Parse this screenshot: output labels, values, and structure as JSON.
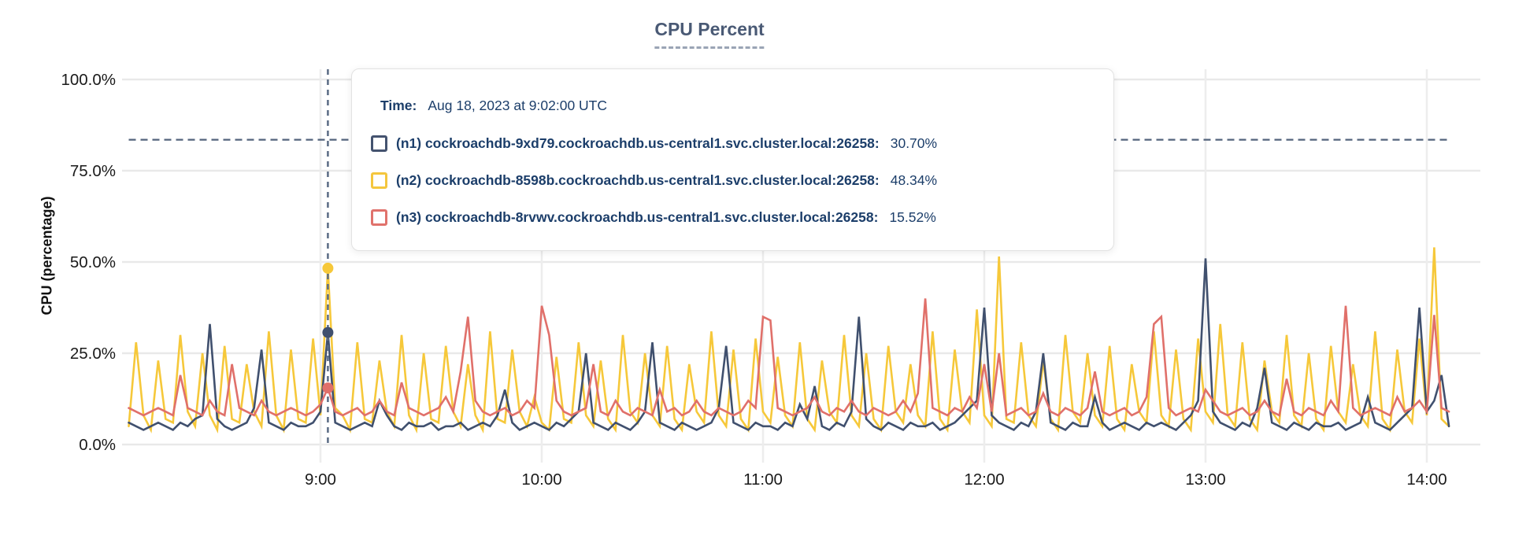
{
  "title": "CPU Percent",
  "y_axis_title": "CPU (percentage)",
  "tooltip": {
    "time_label": "Time:",
    "time_value": "Aug 18, 2023 at 9:02:00 UTC",
    "rows": [
      {
        "node": "(n1) cockroachdb-9xd79.cockroachdb.us-central1.svc.cluster.local:26258:",
        "value": "30.70%",
        "color": "#44536f"
      },
      {
        "node": "(n2) cockroachdb-8598b.cockroachdb.us-central1.svc.cluster.local:26258:",
        "value": "48.34%",
        "color": "#f4c63e"
      },
      {
        "node": "(n3) cockroachdb-8rvwv.cockroachdb.us-central1.svc.cluster.local:26258:",
        "value": "15.52%",
        "color": "#e0726c"
      }
    ]
  },
  "chart_data": {
    "type": "line",
    "title": "CPU Percent",
    "ylabel": "CPU (percentage)",
    "ylim": [
      0,
      100
    ],
    "grid": true,
    "y_tick_values": [
      0,
      25,
      50,
      75,
      100
    ],
    "y_tick_labels": [
      "0.0%",
      "25.0%",
      "50.0%",
      "75.0%",
      "100.0%"
    ],
    "x_tick_labels": [
      "9:00",
      "10:00",
      "11:00",
      "12:00",
      "13:00",
      "14:00"
    ],
    "x_tick_minutes": [
      540,
      600,
      660,
      720,
      780,
      840
    ],
    "x_start_minutes": 488,
    "x_step_minutes": 2,
    "x_range_labels": [
      "8:08",
      "14:06"
    ],
    "threshold_line": {
      "value": 83.5,
      "style": "dashed",
      "color": "#53637c"
    },
    "hover": {
      "index": 27,
      "time_minutes": 542,
      "time_label": "9:02",
      "values": {
        "n1": 30.7,
        "n2": 48.34,
        "n3": 15.52
      }
    },
    "series": [
      {
        "name": "n2",
        "color": "#f6c83a",
        "values": [
          5,
          28,
          8,
          4,
          23,
          7,
          6,
          30,
          9,
          5,
          25,
          8,
          4,
          27,
          7,
          6,
          22,
          9,
          5,
          31,
          8,
          4,
          26,
          7,
          6,
          29,
          8,
          48.3,
          10,
          8,
          4,
          28,
          7,
          6,
          23,
          9,
          5,
          30,
          8,
          4,
          25,
          7,
          6,
          27,
          9,
          5,
          22,
          8,
          4,
          31,
          7,
          6,
          26,
          9,
          5,
          13,
          6,
          4,
          24,
          7,
          6,
          28,
          8,
          5,
          23,
          7,
          4,
          30,
          9,
          6,
          25,
          8,
          5,
          27,
          7,
          4,
          22,
          9,
          6,
          31,
          8,
          5,
          26,
          7,
          4,
          29,
          9,
          6,
          24,
          8,
          5,
          28,
          7,
          4,
          23,
          9,
          6,
          30,
          8,
          5,
          25,
          7,
          4,
          27,
          9,
          6,
          22,
          8,
          5,
          31,
          7,
          4,
          26,
          9,
          6,
          37,
          8,
          5,
          51.5,
          7,
          6,
          28,
          8,
          5,
          23,
          7,
          4,
          30,
          9,
          6,
          25,
          8,
          5,
          27,
          7,
          4,
          22,
          9,
          6,
          31,
          8,
          5,
          26,
          7,
          4,
          29,
          9,
          6,
          33,
          8,
          5,
          28,
          7,
          4,
          23,
          9,
          6,
          30,
          8,
          5,
          25,
          7,
          4,
          27,
          9,
          6,
          22,
          8,
          5,
          31,
          7,
          4,
          26,
          9,
          6,
          29,
          8,
          54,
          7,
          5
        ]
      },
      {
        "name": "n1",
        "color": "#40506e",
        "values": [
          6,
          5,
          4,
          5,
          6,
          5,
          4,
          6,
          5,
          7,
          8,
          33,
          7,
          5,
          4,
          5,
          6,
          10,
          26,
          6,
          5,
          4,
          6,
          5,
          5,
          6,
          9,
          30.7,
          6,
          5,
          4,
          5,
          6,
          5,
          12,
          8,
          5,
          4,
          6,
          5,
          5,
          6,
          4,
          5,
          5,
          6,
          4,
          5,
          6,
          5,
          8,
          15,
          6,
          4,
          5,
          6,
          5,
          4,
          6,
          5,
          7,
          9,
          25,
          6,
          5,
          4,
          6,
          5,
          4,
          6,
          9,
          28,
          6,
          5,
          4,
          6,
          5,
          4,
          5,
          6,
          10,
          27,
          6,
          5,
          4,
          6,
          5,
          5,
          4,
          6,
          5,
          11,
          7,
          16,
          5,
          4,
          6,
          5,
          9,
          35,
          7,
          5,
          4,
          6,
          5,
          4,
          6,
          5,
          5,
          6,
          4,
          5,
          6,
          8,
          10,
          12,
          37.5,
          8,
          6,
          5,
          4,
          6,
          5,
          9,
          25,
          6,
          5,
          4,
          6,
          5,
          5,
          13,
          6,
          4,
          5,
          6,
          5,
          4,
          6,
          5,
          6,
          5,
          4,
          6,
          8,
          12,
          51,
          9,
          6,
          5,
          4,
          6,
          5,
          10,
          21,
          6,
          5,
          4,
          6,
          5,
          4,
          6,
          5,
          5,
          6,
          4,
          5,
          6,
          13,
          6,
          5,
          4,
          6,
          8,
          10,
          37.5,
          9,
          12,
          19,
          5
        ]
      },
      {
        "name": "n3",
        "color": "#e0706a",
        "values": [
          10,
          9,
          8,
          9,
          10,
          9,
          8,
          19,
          10,
          9,
          8,
          12,
          9,
          8,
          22,
          10,
          9,
          8,
          12,
          9,
          8,
          9,
          10,
          9,
          8,
          9,
          11,
          15.5,
          9,
          8,
          9,
          10,
          8,
          9,
          12,
          9,
          8,
          17,
          10,
          9,
          8,
          9,
          10,
          13,
          9,
          20,
          35,
          12,
          9,
          8,
          9,
          10,
          8,
          9,
          12,
          10,
          38,
          30,
          12,
          9,
          8,
          9,
          10,
          22,
          9,
          8,
          12,
          9,
          8,
          10,
          9,
          8,
          15,
          9,
          10,
          8,
          9,
          12,
          9,
          8,
          10,
          9,
          8,
          9,
          12,
          10,
          35,
          34,
          10,
          9,
          8,
          9,
          10,
          13,
          9,
          8,
          10,
          9,
          12,
          9,
          8,
          10,
          9,
          8,
          9,
          12,
          9,
          14,
          40,
          10,
          9,
          8,
          10,
          9,
          13,
          10,
          22,
          9,
          25,
          8,
          9,
          10,
          8,
          9,
          14,
          9,
          8,
          10,
          9,
          8,
          10,
          20,
          9,
          8,
          9,
          10,
          8,
          9,
          13,
          33,
          35,
          10,
          8,
          9,
          10,
          9,
          15,
          12,
          9,
          8,
          9,
          10,
          8,
          9,
          12,
          9,
          8,
          18,
          9,
          8,
          10,
          9,
          8,
          12,
          9,
          38,
          10,
          8,
          9,
          10,
          9,
          8,
          13,
          9,
          10,
          12,
          9,
          35.5,
          10,
          9
        ]
      }
    ]
  }
}
